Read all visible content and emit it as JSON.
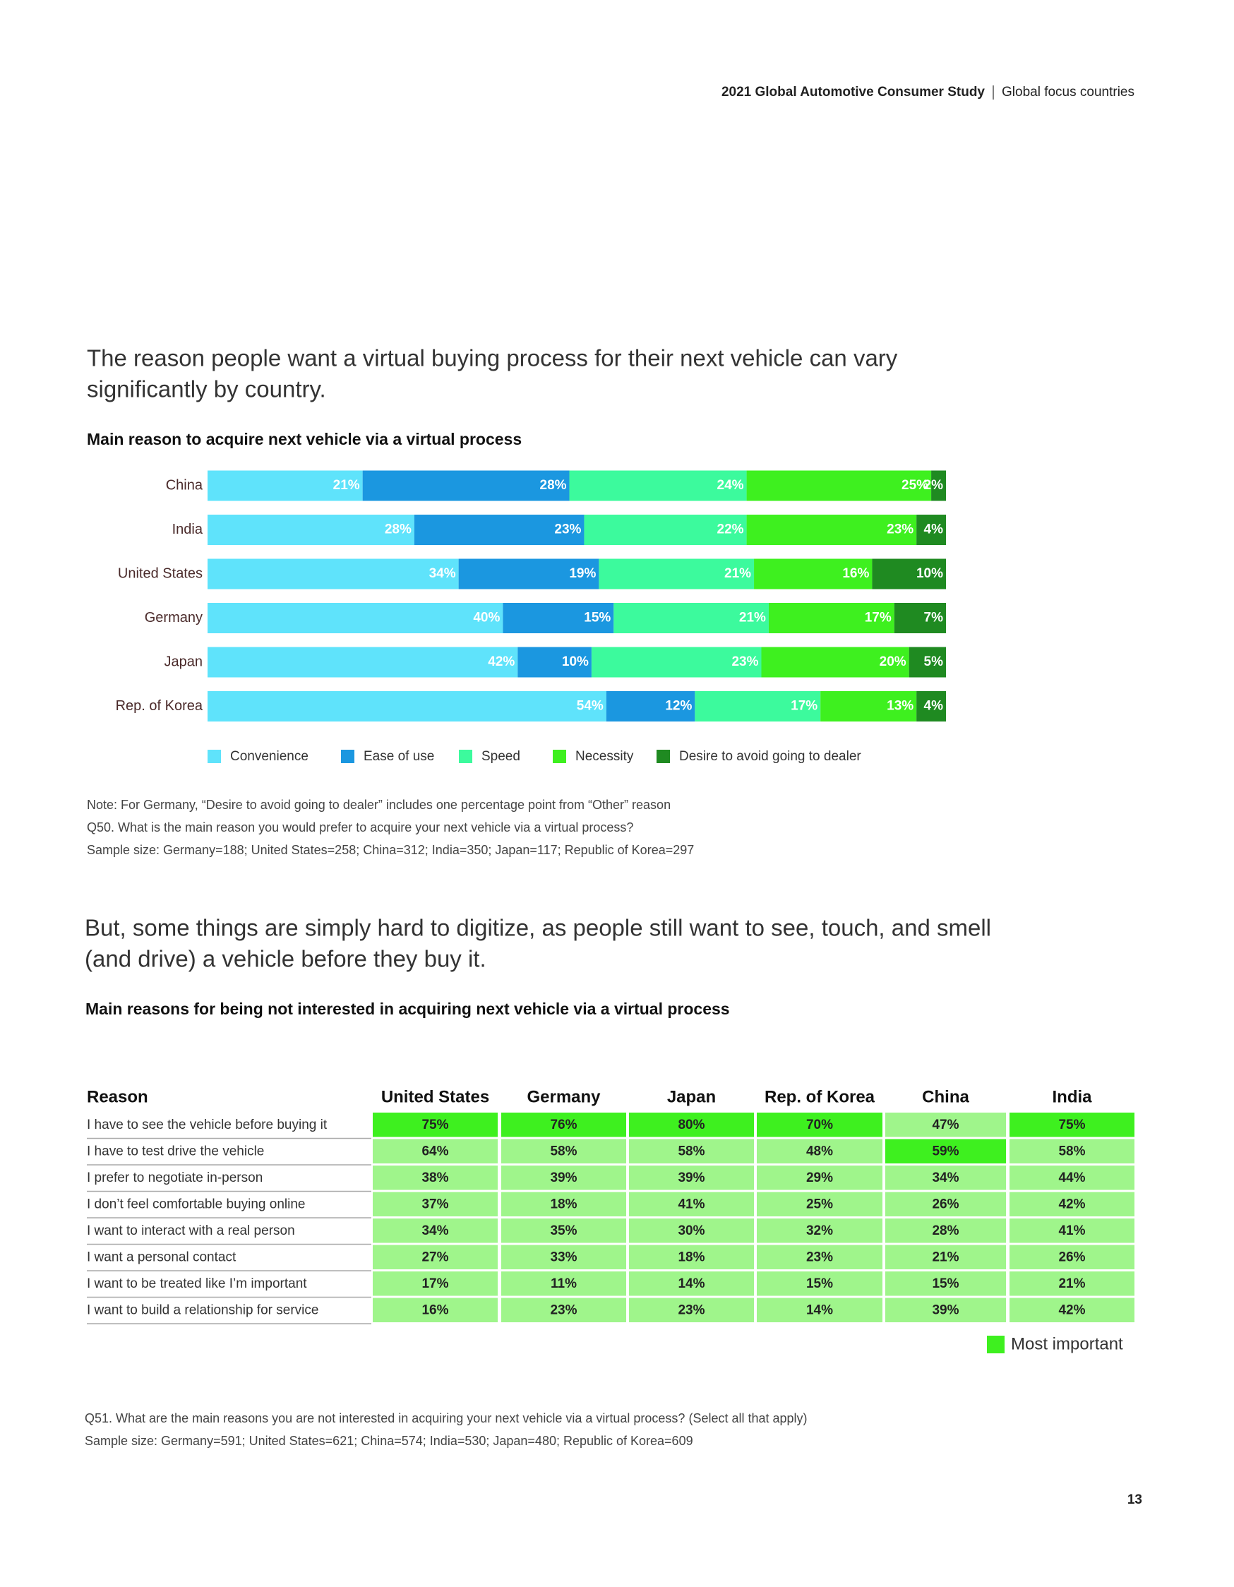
{
  "header": {
    "title": "2021 Global Automotive Consumer Study",
    "section": "Global focus countries"
  },
  "section1": {
    "heading": [
      "The reason people want a virtual buying process for their next vehicle can vary",
      "significantly by country."
    ],
    "notes": [
      "Note: For Germany, “Desire to avoid going to dealer” includes one percentage point from “Other” reason",
      "Q50. What is the main reason you would prefer to acquire your next vehicle via a virtual process?",
      "Sample size: Germany=188; United States=258; China=312; India=350; Japan=117; Republic of Korea=297"
    ]
  },
  "chart_data": {
    "type": "stacked-bar",
    "orientation": "horizontal",
    "title": "Main reason to acquire next vehicle via a virtual process",
    "categories": [
      "China",
      "India",
      "United States",
      "Germany",
      "Japan",
      "Rep. of Korea"
    ],
    "xlim": [
      0,
      100
    ],
    "series": [
      {
        "name": "Convenience",
        "color": "#5fe3fb",
        "values": [
          21,
          28,
          34,
          40,
          42,
          54
        ],
        "value_labels": [
          "21%",
          "28%",
          "34%",
          "40%",
          "42%",
          "54%"
        ]
      },
      {
        "name": "Ease of use",
        "color": "#1b97e0",
        "values": [
          28,
          23,
          19,
          15,
          10,
          12
        ],
        "value_labels": [
          "28%",
          "23%",
          "19%",
          "15%",
          "10%",
          "12%"
        ]
      },
      {
        "name": "Speed",
        "color": "#3cfa9d",
        "values": [
          24,
          22,
          21,
          21,
          23,
          17
        ],
        "value_labels": [
          "24%",
          "22%",
          "21%",
          "21%",
          "23%",
          "17%"
        ]
      },
      {
        "name": "Necessity",
        "color": "#3ef01f",
        "values": [
          25,
          23,
          16,
          17,
          20,
          13
        ],
        "value_labels": [
          "25%",
          "23%",
          "16%",
          "17%",
          "20%",
          "13%"
        ]
      },
      {
        "name": "Desire to avoid going to dealer",
        "color": "#1f8a21",
        "values": [
          2,
          4,
          10,
          7,
          5,
          4
        ],
        "value_labels": [
          "2%",
          "4%",
          "10%",
          "7%",
          "5%",
          "4%"
        ]
      }
    ]
  },
  "section2": {
    "heading": [
      "But, some things are simply hard to digitize, as people still want to see, touch, and smell",
      "(and drive) a vehicle before they buy it."
    ],
    "notes": [
      "Q51. What are the main reasons you are not interested in acquiring your next vehicle via a virtual process? (Select all that apply)",
      "Sample size: Germany=591; United States=621; China=574; India=530; Japan=480; Republic of Korea=609"
    ]
  },
  "table": {
    "title": "Main reasons for being not interested in acquiring next vehicle via a virtual process",
    "header": [
      "Reason",
      "United States",
      "Germany",
      "Japan",
      "Rep. of Korea",
      "China",
      "India"
    ],
    "rows": [
      [
        "I have to see the vehicle before buying it",
        "75%",
        "76%",
        "80%",
        "70%",
        "47%",
        "75%"
      ],
      [
        "I have to test drive the vehicle",
        "64%",
        "58%",
        "58%",
        "48%",
        "59%",
        "58%"
      ],
      [
        "I prefer to negotiate in-person",
        "38%",
        "39%",
        "39%",
        "29%",
        "34%",
        "44%"
      ],
      [
        "I don’t feel comfortable buying online",
        "37%",
        "18%",
        "41%",
        "25%",
        "26%",
        "42%"
      ],
      [
        "I want to interact with a real person",
        "34%",
        "35%",
        "30%",
        "32%",
        "28%",
        "41%"
      ],
      [
        "I want a personal contact",
        "27%",
        "33%",
        "18%",
        "23%",
        "21%",
        "26%"
      ],
      [
        "I want to be treated like I’m important",
        "17%",
        "11%",
        "14%",
        "15%",
        "15%",
        "21%"
      ],
      [
        "I want to build a relationship for service",
        "16%",
        "23%",
        "23%",
        "14%",
        "39%",
        "42%"
      ]
    ],
    "most_important": [
      [
        0,
        1
      ],
      [
        0,
        2
      ],
      [
        0,
        3
      ],
      [
        0,
        4
      ],
      [
        0,
        6
      ],
      [
        1,
        5
      ]
    ],
    "highlight_color": "#3ef01f",
    "cell_color": "#9ff58b",
    "legend": "Most important"
  },
  "page_number": "13"
}
